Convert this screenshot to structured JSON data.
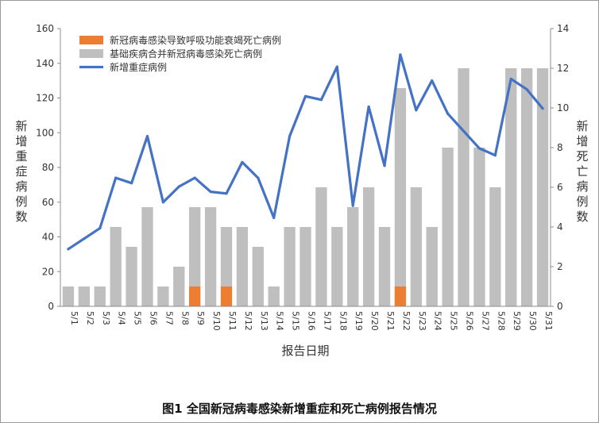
{
  "caption": "图1 全国新冠病毒感染新增重症和死亡病例报告情况",
  "chart_data": {
    "type": "bar",
    "categories": [
      "5/1",
      "5/2",
      "5/3",
      "5/4",
      "5/5",
      "5/6",
      "5/7",
      "5/8",
      "5/9",
      "5/10",
      "5/11",
      "5/12",
      "5/13",
      "5/14",
      "5/15",
      "5/16",
      "5/17",
      "5/18",
      "5/19",
      "5/20",
      "5/21",
      "5/22",
      "5/23",
      "5/24",
      "5/25",
      "5/26",
      "5/27",
      "5/28",
      "5/29",
      "5/30",
      "5/31"
    ],
    "xlabel": "报告日期",
    "ylabel_left": "新增重症病例数",
    "ylabel_right": "新增死亡病例数",
    "ylim_left": [
      0,
      160
    ],
    "yticks_left": [
      0,
      20,
      40,
      60,
      80,
      100,
      120,
      140,
      160
    ],
    "ylim_right": [
      0,
      14
    ],
    "yticks_right": [
      0,
      2,
      4,
      6,
      8,
      10,
      12,
      14
    ],
    "legend_position": "top-left",
    "grid": false,
    "series": [
      {
        "name": "新冠病毒感染导致呼吸功能衰竭死亡病例",
        "kind": "bar",
        "axis": "right",
        "stack": true,
        "color": "#ED7D31",
        "values": [
          0,
          0,
          0,
          0,
          0,
          0,
          0,
          0,
          1,
          0,
          1,
          0,
          0,
          0,
          0,
          0,
          0,
          0,
          0,
          0,
          0,
          1,
          0,
          0,
          0,
          0,
          0,
          0,
          0,
          0,
          0
        ]
      },
      {
        "name": "基础疾病合并新冠病毒感染死亡病例",
        "kind": "bar",
        "axis": "right",
        "stack": true,
        "color": "#BFBFBF",
        "values": [
          1,
          1,
          1,
          4,
          3,
          5,
          1,
          2,
          4,
          5,
          3,
          4,
          3,
          1,
          4,
          4,
          6,
          4,
          5,
          6,
          4,
          10,
          6,
          4,
          8,
          12,
          8,
          6,
          12,
          12,
          12
        ]
      },
      {
        "name": "新增重症病例",
        "kind": "line",
        "axis": "left",
        "color": "#4472C4",
        "values": [
          33,
          39,
          45,
          74,
          71,
          98,
          60,
          69,
          74,
          66,
          65,
          83,
          74,
          51,
          98,
          121,
          119,
          138,
          58,
          115,
          81,
          145,
          113,
          130,
          111,
          101,
          91,
          87,
          131,
          125,
          114
        ]
      }
    ]
  }
}
